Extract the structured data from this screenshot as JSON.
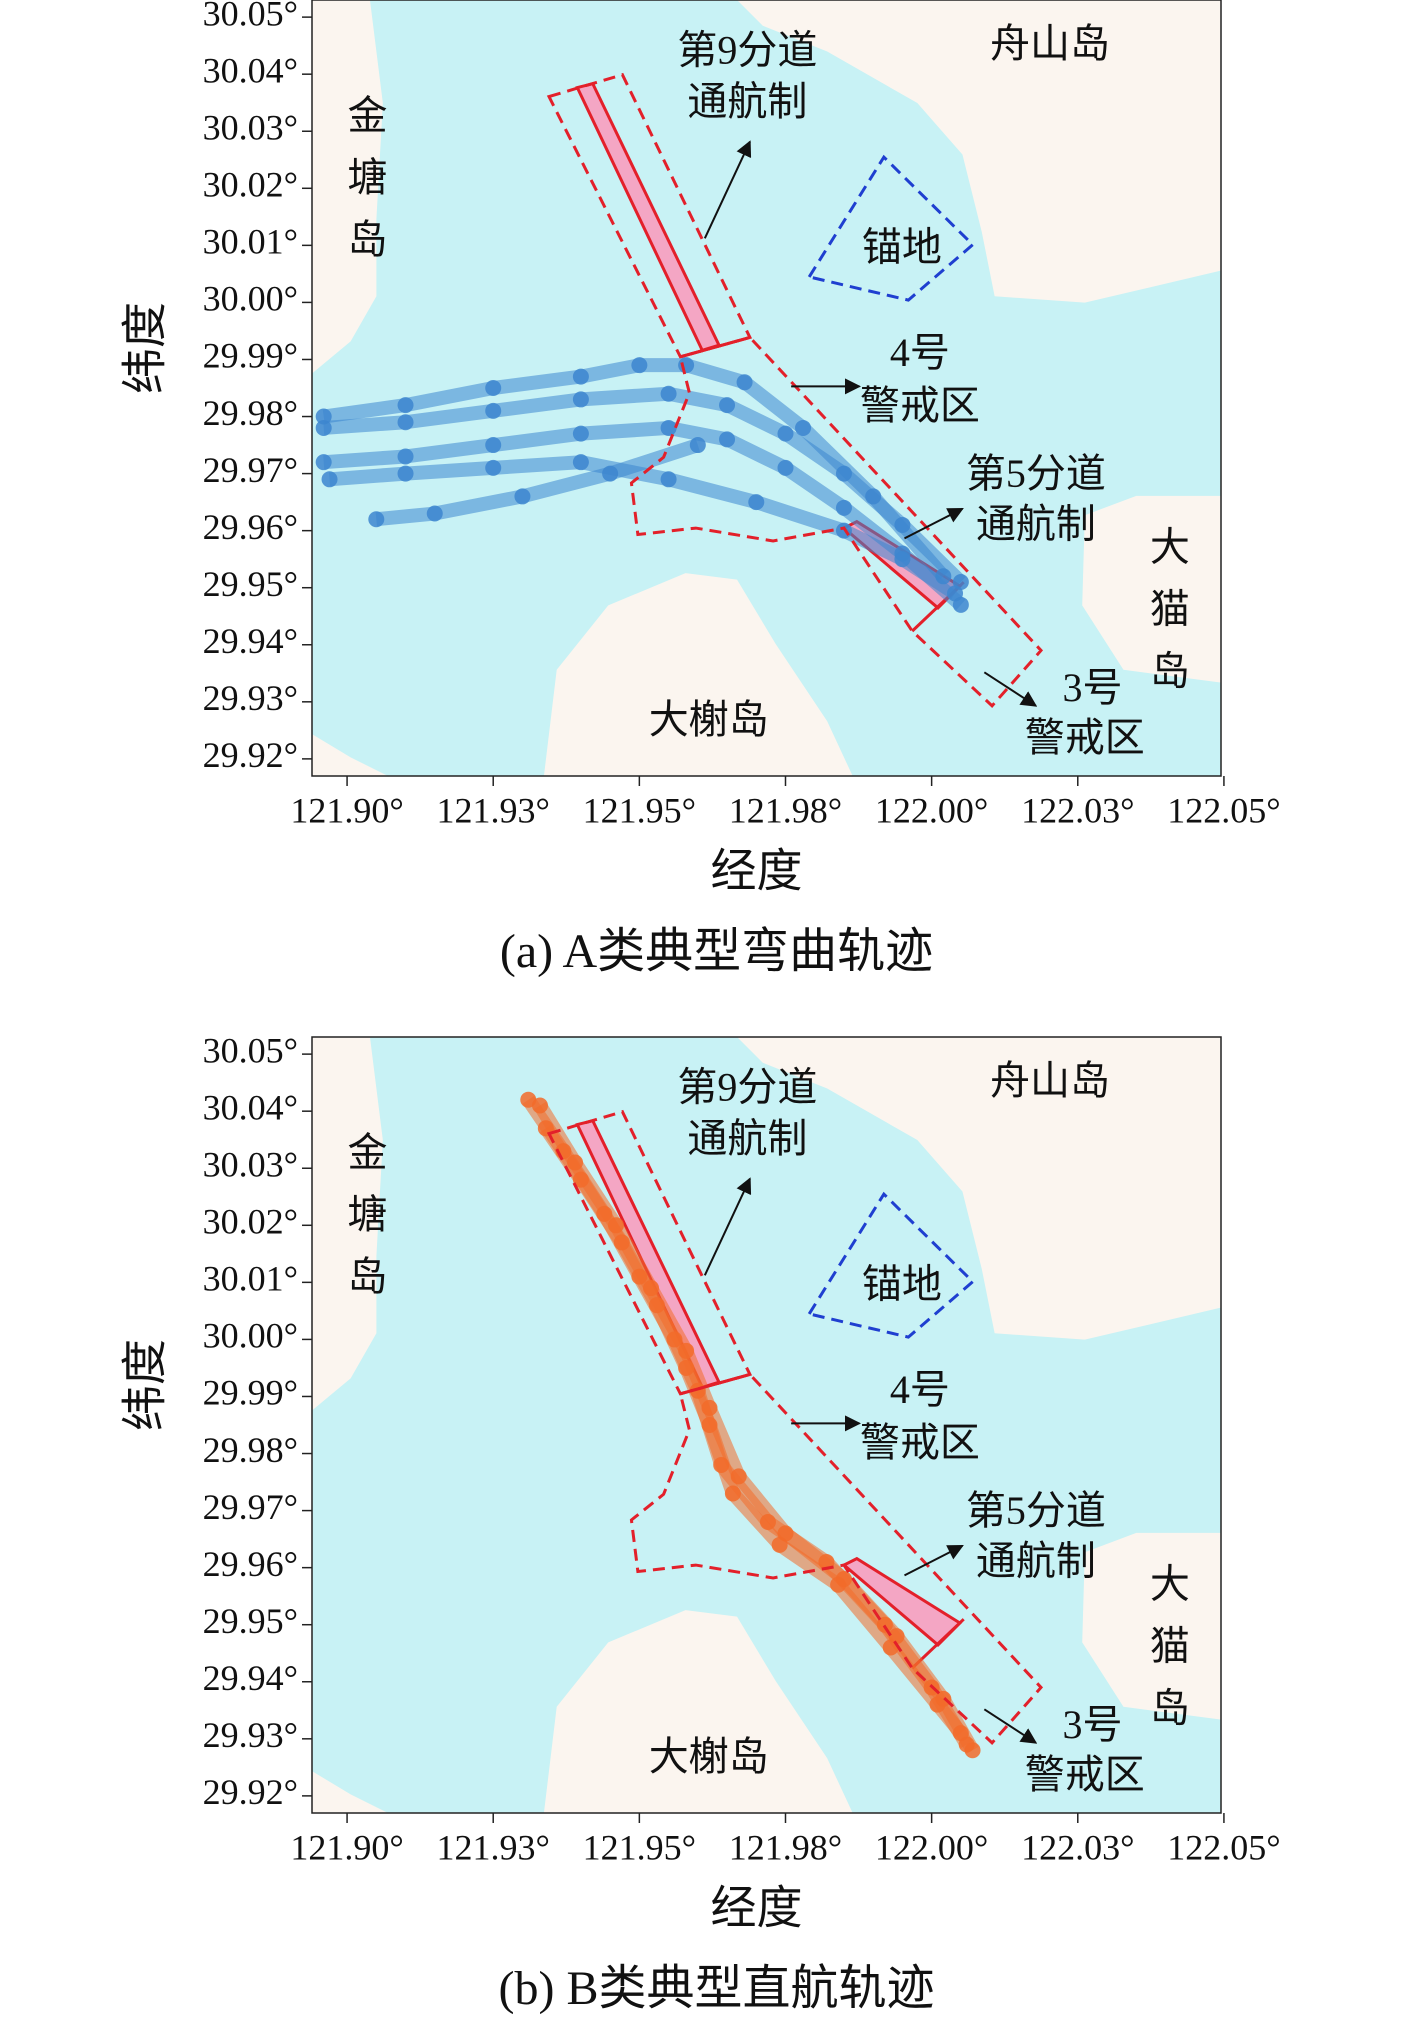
{
  "chart_data": [
    {
      "type": "scatter",
      "title": "(a) A类典型弯曲轨迹",
      "xlabel": "经度",
      "ylabel": "纬度",
      "xlim": [
        121.894,
        122.0495
      ],
      "ylim": [
        29.917,
        30.053
      ],
      "xticks": [
        {
          "value": 121.9,
          "label": "121.90°"
        },
        {
          "value": 121.925,
          "label": "121.93°"
        },
        {
          "value": 121.95,
          "label": "121.95°"
        },
        {
          "value": 121.975,
          "label": "121.98°"
        },
        {
          "value": 122.0,
          "label": "122.00°"
        },
        {
          "value": 122.025,
          "label": "122.03°"
        },
        {
          "value": 122.05,
          "label": "122.05°"
        }
      ],
      "yticks": [
        {
          "value": 30.05,
          "label": "30.05°"
        },
        {
          "value": 30.04,
          "label": "30.04°"
        },
        {
          "value": 30.03,
          "label": "30.03°"
        },
        {
          "value": 30.02,
          "label": "30.02°"
        },
        {
          "value": 30.01,
          "label": "30.01°"
        },
        {
          "value": 30.0,
          "label": "30.00°"
        },
        {
          "value": 29.99,
          "label": "29.99°"
        },
        {
          "value": 29.98,
          "label": "29.98°"
        },
        {
          "value": 29.97,
          "label": "29.97°"
        },
        {
          "value": 29.96,
          "label": "29.96°"
        },
        {
          "value": 29.95,
          "label": "29.95°"
        },
        {
          "value": 29.94,
          "label": "29.94°"
        },
        {
          "value": 29.93,
          "label": "29.93°"
        },
        {
          "value": 29.92,
          "label": "29.92°"
        }
      ],
      "labels": [
        "舟山岛",
        "金塘岛",
        "第9分道",
        "通航制",
        "锚地",
        "4号",
        "警戒区",
        "第5分道",
        "通航制",
        "大猫岛",
        "大榭岛",
        "3号",
        "警戒区"
      ],
      "series": [
        {
          "color": "#3d86cf",
          "x": [
            121.896,
            121.91,
            121.925,
            121.94,
            121.955,
            121.965,
            121.975,
            121.985,
            121.995,
            122.005
          ],
          "y": [
            29.978,
            29.979,
            29.981,
            29.983,
            29.984,
            29.982,
            29.977,
            29.97,
            29.961,
            29.951
          ]
        },
        {
          "color": "#3d86cf",
          "x": [
            121.896,
            121.91,
            121.925,
            121.94,
            121.955,
            121.965,
            121.975,
            121.985,
            121.995,
            122.005
          ],
          "y": [
            29.972,
            29.973,
            29.975,
            29.977,
            29.978,
            29.976,
            29.971,
            29.964,
            29.956,
            29.947
          ]
        },
        {
          "color": "#3d86cf",
          "x": [
            121.896,
            121.91,
            121.925,
            121.94,
            121.95,
            121.958,
            121.968,
            121.978,
            121.99,
            122.002
          ],
          "y": [
            29.98,
            29.982,
            29.985,
            29.987,
            29.989,
            29.989,
            29.986,
            29.978,
            29.966,
            29.952
          ]
        },
        {
          "color": "#3d86cf",
          "x": [
            121.897,
            121.91,
            121.925,
            121.94,
            121.955,
            121.97,
            121.985,
            121.995,
            122.004
          ],
          "y": [
            29.969,
            29.97,
            29.971,
            29.972,
            29.969,
            29.965,
            29.96,
            29.955,
            29.949
          ]
        },
        {
          "color": "#3d86cf",
          "x": [
            121.96,
            121.945,
            121.93,
            121.915,
            121.905
          ],
          "y": [
            29.975,
            29.97,
            29.966,
            29.963,
            29.962
          ]
        }
      ]
    },
    {
      "type": "scatter",
      "title": "(b) B类典型直航轨迹",
      "xlabel": "经度",
      "ylabel": "纬度",
      "xlim": [
        121.894,
        122.0495
      ],
      "ylim": [
        29.917,
        30.053
      ],
      "xticks": [
        {
          "value": 121.9,
          "label": "121.90°"
        },
        {
          "value": 121.925,
          "label": "121.93°"
        },
        {
          "value": 121.95,
          "label": "121.95°"
        },
        {
          "value": 121.975,
          "label": "121.98°"
        },
        {
          "value": 122.0,
          "label": "122.00°"
        },
        {
          "value": 122.025,
          "label": "122.03°"
        },
        {
          "value": 122.05,
          "label": "122.05°"
        }
      ],
      "yticks": [
        {
          "value": 30.05,
          "label": "30.05°"
        },
        {
          "value": 30.04,
          "label": "30.04°"
        },
        {
          "value": 30.03,
          "label": "30.03°"
        },
        {
          "value": 30.02,
          "label": "30.02°"
        },
        {
          "value": 30.01,
          "label": "30.01°"
        },
        {
          "value": 30.0,
          "label": "30.00°"
        },
        {
          "value": 29.99,
          "label": "29.99°"
        },
        {
          "value": 29.98,
          "label": "29.98°"
        },
        {
          "value": 29.97,
          "label": "29.97°"
        },
        {
          "value": 29.96,
          "label": "29.96°"
        },
        {
          "value": 29.95,
          "label": "29.95°"
        },
        {
          "value": 29.94,
          "label": "29.94°"
        },
        {
          "value": 29.93,
          "label": "29.93°"
        },
        {
          "value": 29.92,
          "label": "29.92°"
        }
      ],
      "labels": [
        "舟山岛",
        "金塘岛",
        "第9分道",
        "通航制",
        "锚地",
        "4号",
        "警戒区",
        "第5分道",
        "通航制",
        "大猫岛",
        "大榭岛",
        "3号",
        "警戒区"
      ],
      "series": [
        {
          "color": "#f26b2a",
          "x": [
            121.931,
            121.937,
            121.944,
            121.95,
            121.956,
            121.96,
            121.964,
            121.972,
            121.982,
            121.992,
            122.0,
            122.006
          ],
          "y": [
            30.042,
            30.033,
            30.022,
            30.011,
            30.0,
            29.991,
            29.978,
            29.968,
            29.961,
            29.95,
            29.939,
            29.929
          ]
        },
        {
          "color": "#f26b2a",
          "x": [
            121.933,
            121.939,
            121.946,
            121.952,
            121.958,
            121.962,
            121.967,
            121.975,
            121.985,
            121.994,
            122.002,
            122.007
          ],
          "y": [
            30.041,
            30.031,
            30.02,
            30.009,
            29.998,
            29.988,
            29.976,
            29.966,
            29.958,
            29.948,
            29.937,
            29.928
          ]
        },
        {
          "color": "#f26b2a",
          "x": [
            121.934,
            121.94,
            121.947,
            121.953,
            121.958,
            121.962,
            121.966,
            121.974,
            121.984,
            121.993,
            122.001,
            122.005
          ],
          "y": [
            30.037,
            30.028,
            30.017,
            30.006,
            29.995,
            29.985,
            29.973,
            29.964,
            29.957,
            29.946,
            29.936,
            29.931
          ]
        }
      ]
    }
  ]
}
